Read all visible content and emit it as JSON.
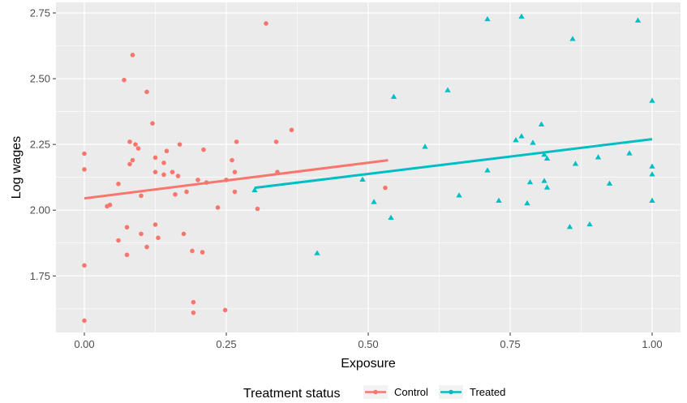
{
  "chart_data": {
    "type": "scatter",
    "xlabel": "Exposure",
    "ylabel": "Log wages",
    "xlim": [
      -0.05,
      1.05
    ],
    "ylim": [
      1.535,
      2.79
    ],
    "x_ticks": [
      0.0,
      0.25,
      0.5,
      0.75,
      1.0
    ],
    "x_tick_labels": [
      "0.00",
      "0.25",
      "0.50",
      "0.75",
      "1.00"
    ],
    "y_ticks": [
      1.75,
      2.0,
      2.25,
      2.5,
      2.75
    ],
    "y_tick_labels": [
      "1.75",
      "2.00",
      "2.25",
      "2.50",
      "2.75"
    ],
    "grid": true,
    "background": "#ebebeb",
    "legend": {
      "title": "Treatment status",
      "position": "bottom"
    },
    "series": [
      {
        "name": "Control",
        "color": "#f8766d",
        "marker": "circle",
        "points": [
          [
            0.0,
            2.215
          ],
          [
            0.0,
            2.155
          ],
          [
            0.0,
            1.79
          ],
          [
            0.0,
            1.58
          ],
          [
            0.04,
            2.015
          ],
          [
            0.045,
            2.02
          ],
          [
            0.06,
            1.885
          ],
          [
            0.06,
            2.1
          ],
          [
            0.07,
            2.495
          ],
          [
            0.075,
            1.935
          ],
          [
            0.075,
            1.83
          ],
          [
            0.08,
            2.26
          ],
          [
            0.08,
            2.175
          ],
          [
            0.085,
            2.19
          ],
          [
            0.085,
            2.59
          ],
          [
            0.09,
            2.25
          ],
          [
            0.095,
            2.235
          ],
          [
            0.1,
            2.055
          ],
          [
            0.1,
            1.91
          ],
          [
            0.11,
            1.86
          ],
          [
            0.11,
            2.45
          ],
          [
            0.12,
            2.33
          ],
          [
            0.125,
            2.2
          ],
          [
            0.125,
            2.145
          ],
          [
            0.125,
            1.945
          ],
          [
            0.13,
            1.895
          ],
          [
            0.14,
            2.135
          ],
          [
            0.14,
            2.18
          ],
          [
            0.145,
            2.225
          ],
          [
            0.155,
            2.145
          ],
          [
            0.16,
            2.06
          ],
          [
            0.165,
            2.13
          ],
          [
            0.168,
            2.25
          ],
          [
            0.175,
            1.91
          ],
          [
            0.18,
            2.07
          ],
          [
            0.19,
            1.845
          ],
          [
            0.192,
            1.65
          ],
          [
            0.192,
            1.61
          ],
          [
            0.2,
            2.115
          ],
          [
            0.208,
            1.84
          ],
          [
            0.21,
            2.23
          ],
          [
            0.215,
            2.105
          ],
          [
            0.235,
            2.01
          ],
          [
            0.248,
            1.62
          ],
          [
            0.25,
            2.115
          ],
          [
            0.26,
            2.19
          ],
          [
            0.265,
            2.145
          ],
          [
            0.265,
            2.07
          ],
          [
            0.268,
            2.26
          ],
          [
            0.305,
            2.005
          ],
          [
            0.32,
            2.71
          ],
          [
            0.338,
            2.26
          ],
          [
            0.34,
            2.145
          ],
          [
            0.365,
            2.305
          ],
          [
            0.53,
            2.085
          ]
        ],
        "fit": {
          "x": [
            0.0,
            0.535
          ],
          "y": [
            2.045,
            2.19
          ]
        }
      },
      {
        "name": "Treated",
        "color": "#00bfc4",
        "marker": "triangle",
        "points": [
          [
            0.3,
            2.075
          ],
          [
            0.41,
            1.835
          ],
          [
            0.49,
            2.115
          ],
          [
            0.51,
            2.03
          ],
          [
            0.54,
            1.97
          ],
          [
            0.545,
            2.43
          ],
          [
            0.6,
            2.24
          ],
          [
            0.64,
            2.455
          ],
          [
            0.66,
            2.055
          ],
          [
            0.71,
            2.725
          ],
          [
            0.71,
            2.15
          ],
          [
            0.73,
            2.035
          ],
          [
            0.76,
            2.265
          ],
          [
            0.77,
            2.735
          ],
          [
            0.77,
            2.28
          ],
          [
            0.78,
            2.025
          ],
          [
            0.785,
            2.105
          ],
          [
            0.79,
            2.255
          ],
          [
            0.805,
            2.325
          ],
          [
            0.81,
            2.11
          ],
          [
            0.81,
            2.21
          ],
          [
            0.815,
            2.085
          ],
          [
            0.815,
            2.195
          ],
          [
            0.855,
            1.935
          ],
          [
            0.86,
            2.65
          ],
          [
            0.865,
            2.175
          ],
          [
            0.89,
            1.945
          ],
          [
            0.905,
            2.2
          ],
          [
            0.925,
            2.1
          ],
          [
            0.96,
            2.215
          ],
          [
            0.975,
            2.72
          ],
          [
            1.0,
            2.415
          ],
          [
            1.0,
            2.165
          ],
          [
            1.0,
            2.135
          ],
          [
            1.0,
            2.035
          ]
        ],
        "fit": {
          "x": [
            0.3,
            1.0
          ],
          "y": [
            2.085,
            2.27
          ]
        }
      }
    ]
  }
}
